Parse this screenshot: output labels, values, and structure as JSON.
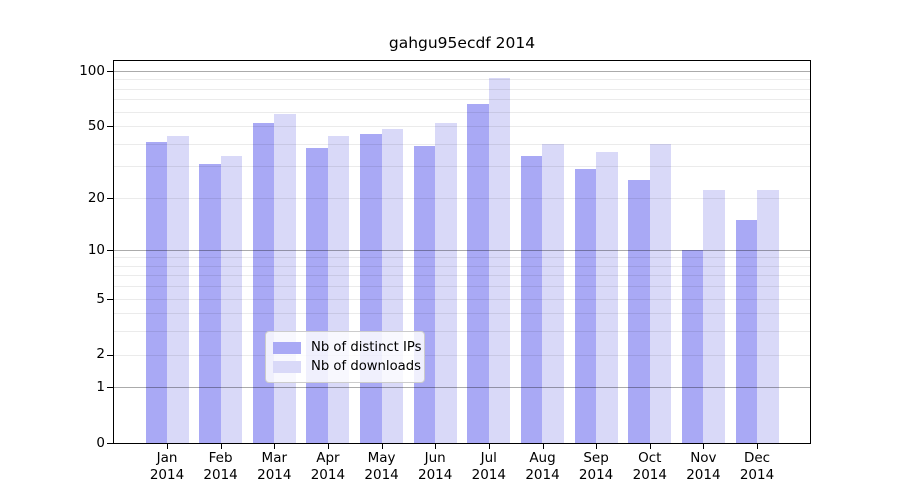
{
  "title": "gahgu95ecdf 2014",
  "colors": {
    "bar_ips": "#a9a9f5",
    "bar_downloads": "#d9d9f8",
    "grid_major": "rgba(0,0,0,0.33)",
    "grid_minor": "rgba(0,0,0,0.08)",
    "frame": "#000000"
  },
  "legend": {
    "items": [
      {
        "label": "Nb of distinct IPs",
        "color_key": "bar_ips"
      },
      {
        "label": "Nb of downloads",
        "color_key": "bar_downloads"
      }
    ]
  },
  "chart_data": {
    "type": "bar",
    "title": "gahgu95ecdf 2014",
    "categories": [
      "Jan 2014",
      "Feb 2014",
      "Mar 2014",
      "Apr 2014",
      "May 2014",
      "Jun 2014",
      "Jul 2014",
      "Aug 2014",
      "Sep 2014",
      "Oct 2014",
      "Nov 2014",
      "Dec 2014"
    ],
    "series": [
      {
        "name": "Nb of distinct IPs",
        "values": [
          41,
          31,
          52,
          38,
          45,
          39,
          66,
          34,
          29,
          25,
          10,
          15
        ]
      },
      {
        "name": "Nb of downloads",
        "values": [
          44,
          34,
          58,
          44,
          48,
          52,
          92,
          40,
          36,
          40,
          22,
          22
        ]
      }
    ],
    "xlabel": "",
    "ylabel": "",
    "yscale": "log1p",
    "yticks": [
      0,
      1,
      2,
      5,
      10,
      20,
      50,
      100
    ],
    "ylim": [
      0,
      113
    ],
    "grid": true,
    "legend_position": "lower center"
  }
}
